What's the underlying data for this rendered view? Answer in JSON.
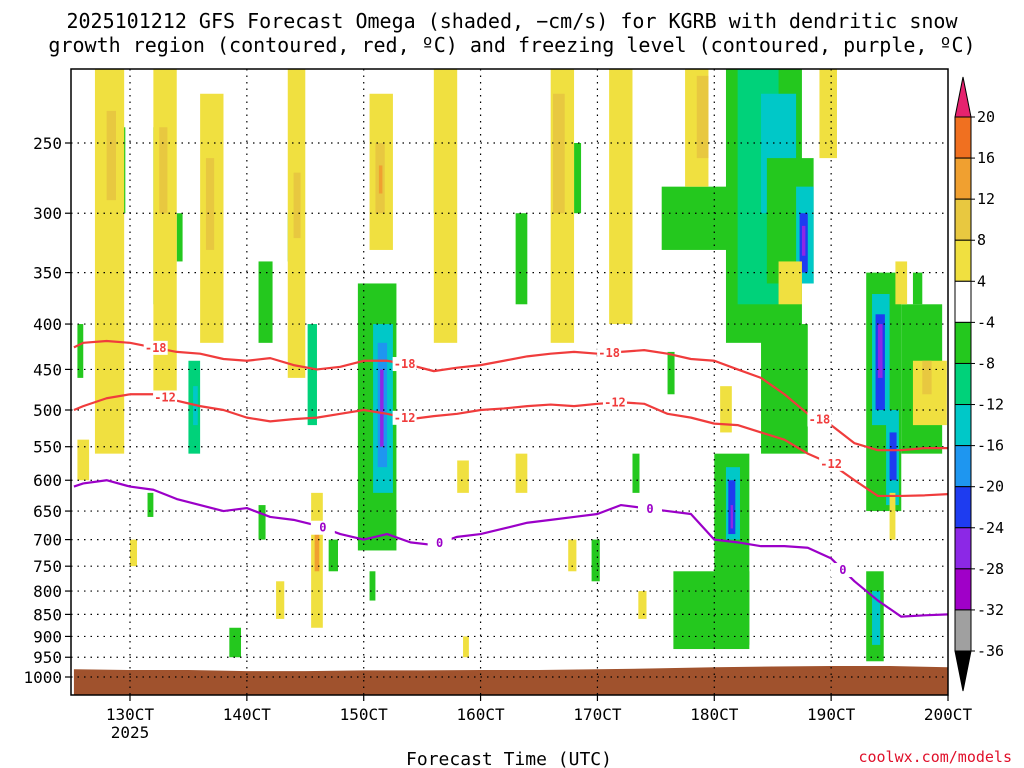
{
  "title": {
    "line1": "2025101212 GFS Forecast Omega (shaded, −cm/s) for KGRB with dendritic snow",
    "line2": "growth region (contoured, red, ºC) and freezing level (contoured, purple, ºC)"
  },
  "credit": "coolwx.com/models",
  "colors": {
    "snow_contour": "#f03c3c",
    "freezing_contour": "#9b00c8",
    "ground": "#a0522d",
    "grid": "#000000"
  },
  "chart_data": {
    "type": "heatmap",
    "title": "2025101212 GFS Forecast Omega (shaded, −cm/s) for KGRB with dendritic snow growth region (contoured, red, ºC) and freezing level (contoured, purple, ºC)",
    "xlabel": "Forecast Time (UTC)",
    "ylabel": "",
    "x_ticks": [
      {
        "v": 13.0,
        "label": "130CT",
        "sub": "2025"
      },
      {
        "v": 14.0,
        "label": "140CT"
      },
      {
        "v": 15.0,
        "label": "150CT"
      },
      {
        "v": 16.0,
        "label": "160CT"
      },
      {
        "v": 17.0,
        "label": "170CT"
      },
      {
        "v": 18.0,
        "label": "180CT"
      },
      {
        "v": 19.0,
        "label": "190CT"
      },
      {
        "v": 20.0,
        "label": "200CT"
      }
    ],
    "xlim": [
      12.52,
      20.0
    ],
    "ylim_hpa": [
      200,
      1025
    ],
    "y_scale": "log-pressure (inverted)",
    "y_ticks": [
      250,
      300,
      350,
      400,
      450,
      500,
      550,
      600,
      650,
      700,
      750,
      800,
      850,
      900,
      950,
      1000
    ],
    "grid": true,
    "colorbar": {
      "position": "right",
      "levels": [
        20,
        16,
        12,
        8,
        4,
        -4,
        -8,
        -12,
        -16,
        -20,
        -24,
        -28,
        -32,
        -36
      ],
      "colors": [
        "#ff4040",
        "#f07020",
        "#f0a030",
        "#e8c840",
        "#f0e040",
        "#ffffff",
        "#24c81e",
        "#00d27a",
        "#00c8c8",
        "#1e96f0",
        "#1e3cf0",
        "#8c28e6",
        "#a000c8",
        "#a0a0a0",
        "#000000"
      ],
      "top_arrow_color": "#e6226e",
      "bottom_arrow_color": "#000000"
    },
    "omega_cells": [
      {
        "t0": 13.5,
        "t1": 13.6,
        "p0": 440,
        "p1": 560,
        "v": -10
      },
      {
        "t0": 13.54,
        "t1": 13.58,
        "p0": 470,
        "p1": 520,
        "v": -16
      },
      {
        "t0": 14.95,
        "t1": 15.28,
        "p0": 360,
        "p1": 720,
        "v": -8
      },
      {
        "t0": 15.08,
        "t1": 15.25,
        "p0": 400,
        "p1": 620,
        "v": -14
      },
      {
        "t0": 15.12,
        "t1": 15.2,
        "p0": 420,
        "p1": 580,
        "v": -20
      },
      {
        "t0": 15.14,
        "t1": 15.17,
        "p0": 450,
        "p1": 550,
        "v": -26
      },
      {
        "t0": 14.52,
        "t1": 14.6,
        "p0": 400,
        "p1": 520,
        "v": -12
      },
      {
        "t0": 13.85,
        "t1": 13.95,
        "p0": 880,
        "p1": 950,
        "v": -8
      },
      {
        "t0": 15.05,
        "t1": 15.1,
        "p0": 760,
        "p1": 820,
        "v": -8
      },
      {
        "t0": 15.6,
        "t1": 15.7,
        "p0": 250,
        "p1": 300,
        "v": -8
      },
      {
        "t0": 17.55,
        "t1": 18.2,
        "p0": 280,
        "p1": 330,
        "v": -8
      },
      {
        "t0": 17.65,
        "t1": 18.3,
        "p0": 760,
        "p1": 930,
        "v": -8
      },
      {
        "t0": 18.0,
        "t1": 18.3,
        "p0": 560,
        "p1": 920,
        "v": -8
      },
      {
        "t0": 18.1,
        "t1": 18.22,
        "p0": 580,
        "p1": 700,
        "v": -14
      },
      {
        "t0": 18.12,
        "t1": 18.18,
        "p0": 600,
        "p1": 690,
        "v": -22
      },
      {
        "t0": 18.14,
        "t1": 18.16,
        "p0": 640,
        "p1": 680,
        "v": -26
      },
      {
        "t0": 18.1,
        "t1": 18.75,
        "p0": 180,
        "p1": 420,
        "v": -8
      },
      {
        "t0": 18.2,
        "t1": 18.55,
        "p0": 200,
        "p1": 380,
        "v": -12
      },
      {
        "t0": 18.4,
        "t1": 18.7,
        "p0": 220,
        "p1": 300,
        "v": -14
      },
      {
        "t0": 18.45,
        "t1": 18.85,
        "p0": 260,
        "p1": 360,
        "v": -8
      },
      {
        "t0": 18.7,
        "t1": 18.85,
        "p0": 280,
        "p1": 360,
        "v": -14
      },
      {
        "t0": 18.73,
        "t1": 18.8,
        "p0": 300,
        "p1": 350,
        "v": -22
      },
      {
        "t0": 18.75,
        "t1": 18.78,
        "p0": 310,
        "p1": 335,
        "v": -26
      },
      {
        "t0": 18.4,
        "t1": 18.8,
        "p0": 400,
        "p1": 560,
        "v": -8
      },
      {
        "t0": 19.3,
        "t1": 19.6,
        "p0": 350,
        "p1": 650,
        "v": -8
      },
      {
        "t0": 19.35,
        "t1": 19.5,
        "p0": 370,
        "p1": 520,
        "v": -14
      },
      {
        "t0": 19.38,
        "t1": 19.46,
        "p0": 390,
        "p1": 500,
        "v": -22
      },
      {
        "t0": 19.4,
        "t1": 19.44,
        "p0": 400,
        "p1": 460,
        "v": -28
      },
      {
        "t0": 19.47,
        "t1": 19.58,
        "p0": 500,
        "p1": 640,
        "v": -14
      },
      {
        "t0": 19.5,
        "t1": 19.56,
        "p0": 530,
        "p1": 600,
        "v": -22
      },
      {
        "t0": 19.3,
        "t1": 19.45,
        "p0": 760,
        "p1": 960,
        "v": -8
      },
      {
        "t0": 19.35,
        "t1": 19.42,
        "p0": 800,
        "p1": 920,
        "v": -14
      },
      {
        "t0": 19.6,
        "t1": 19.95,
        "p0": 380,
        "p1": 560,
        "v": -8
      },
      {
        "t0": 19.7,
        "t1": 19.78,
        "p0": 350,
        "p1": 380,
        "v": -8
      },
      {
        "t0": 12.55,
        "t1": 12.6,
        "p0": 400,
        "p1": 460,
        "v": -8
      },
      {
        "t0": 12.9,
        "t1": 12.96,
        "p0": 240,
        "p1": 300,
        "v": -8
      },
      {
        "t0": 13.2,
        "t1": 13.28,
        "p0": 240,
        "p1": 380,
        "v": -8
      },
      {
        "t0": 13.4,
        "t1": 13.45,
        "p0": 300,
        "p1": 340,
        "v": -8
      },
      {
        "t0": 14.1,
        "t1": 14.22,
        "p0": 340,
        "p1": 420,
        "v": -8
      },
      {
        "t0": 14.35,
        "t1": 14.4,
        "p0": 300,
        "p1": 340,
        "v": -8
      },
      {
        "t0": 16.3,
        "t1": 16.4,
        "p0": 300,
        "p1": 380,
        "v": -8
      },
      {
        "t0": 16.8,
        "t1": 16.86,
        "p0": 250,
        "p1": 300,
        "v": -8
      },
      {
        "t0": 17.3,
        "t1": 17.36,
        "p0": 560,
        "p1": 620,
        "v": -8
      },
      {
        "t0": 17.6,
        "t1": 17.66,
        "p0": 430,
        "p1": 480,
        "v": -8
      },
      {
        "t0": 16.95,
        "t1": 17.02,
        "p0": 700,
        "p1": 780,
        "v": -8
      },
      {
        "t0": 14.7,
        "t1": 14.78,
        "p0": 700,
        "p1": 760,
        "v": -8
      },
      {
        "t0": 14.1,
        "t1": 14.16,
        "p0": 640,
        "p1": 700,
        "v": -8
      },
      {
        "t0": 13.15,
        "t1": 13.2,
        "p0": 620,
        "p1": 660,
        "v": -8
      },
      {
        "t0": 12.7,
        "t1": 12.95,
        "p0": 200,
        "p1": 560,
        "v": 6
      },
      {
        "t0": 12.8,
        "t1": 12.88,
        "p0": 230,
        "p1": 290,
        "v": 10
      },
      {
        "t0": 13.2,
        "t1": 13.4,
        "p0": 200,
        "p1": 480,
        "v": 6
      },
      {
        "t0": 13.25,
        "t1": 13.32,
        "p0": 240,
        "p1": 300,
        "v": 10
      },
      {
        "t0": 13.6,
        "t1": 13.8,
        "p0": 220,
        "p1": 420,
        "v": 6
      },
      {
        "t0": 13.65,
        "t1": 13.72,
        "p0": 260,
        "p1": 330,
        "v": 10
      },
      {
        "t0": 14.35,
        "t1": 14.5,
        "p0": 200,
        "p1": 460,
        "v": 6
      },
      {
        "t0": 14.4,
        "t1": 14.46,
        "p0": 270,
        "p1": 320,
        "v": 10
      },
      {
        "t0": 14.55,
        "t1": 14.65,
        "p0": 620,
        "p1": 880,
        "v": 6
      },
      {
        "t0": 14.58,
        "t1": 14.62,
        "p0": 690,
        "p1": 760,
        "v": 12
      },
      {
        "t0": 15.05,
        "t1": 15.25,
        "p0": 220,
        "p1": 330,
        "v": 6
      },
      {
        "t0": 15.1,
        "t1": 15.18,
        "p0": 250,
        "p1": 300,
        "v": 10
      },
      {
        "t0": 15.13,
        "t1": 15.16,
        "p0": 265,
        "p1": 285,
        "v": 14
      },
      {
        "t0": 15.6,
        "t1": 15.8,
        "p0": 200,
        "p1": 420,
        "v": 6
      },
      {
        "t0": 16.6,
        "t1": 16.8,
        "p0": 200,
        "p1": 420,
        "v": 6
      },
      {
        "t0": 16.62,
        "t1": 16.72,
        "p0": 220,
        "p1": 300,
        "v": 10
      },
      {
        "t0": 17.1,
        "t1": 17.3,
        "p0": 200,
        "p1": 400,
        "v": 6
      },
      {
        "t0": 17.75,
        "t1": 17.95,
        "p0": 200,
        "p1": 280,
        "v": 6
      },
      {
        "t0": 17.85,
        "t1": 17.95,
        "p0": 210,
        "p1": 260,
        "v": 10
      },
      {
        "t0": 18.05,
        "t1": 18.15,
        "p0": 470,
        "p1": 530,
        "v": 6
      },
      {
        "t0": 18.55,
        "t1": 18.75,
        "p0": 340,
        "p1": 380,
        "v": 6
      },
      {
        "t0": 18.9,
        "t1": 19.05,
        "p0": 200,
        "p1": 260,
        "v": 6
      },
      {
        "t0": 19.5,
        "t1": 19.55,
        "p0": 620,
        "p1": 700,
        "v": 6
      },
      {
        "t0": 19.55,
        "t1": 19.65,
        "p0": 340,
        "p1": 380,
        "v": 6
      },
      {
        "t0": 19.7,
        "t1": 19.99,
        "p0": 440,
        "p1": 520,
        "v": 6
      },
      {
        "t0": 19.78,
        "t1": 19.86,
        "p0": 440,
        "p1": 480,
        "v": 10
      },
      {
        "t0": 12.55,
        "t1": 12.65,
        "p0": 540,
        "p1": 600,
        "v": 6
      },
      {
        "t0": 15.8,
        "t1": 15.9,
        "p0": 570,
        "p1": 620,
        "v": 6
      },
      {
        "t0": 16.3,
        "t1": 16.4,
        "p0": 560,
        "p1": 620,
        "v": 6
      },
      {
        "t0": 13.0,
        "t1": 13.06,
        "p0": 700,
        "p1": 750,
        "v": 6
      },
      {
        "t0": 14.25,
        "t1": 14.32,
        "p0": 780,
        "p1": 860,
        "v": 6
      },
      {
        "t0": 15.85,
        "t1": 15.9,
        "p0": 900,
        "p1": 950,
        "v": 6
      },
      {
        "t0": 16.75,
        "t1": 16.82,
        "p0": 700,
        "p1": 760,
        "v": 6
      },
      {
        "t0": 17.35,
        "t1": 17.42,
        "p0": 800,
        "p1": 860,
        "v": 6
      }
    ],
    "series": [
      {
        "name": "-18",
        "type": "contour",
        "color_key": "snow_contour",
        "x": [
          12.52,
          12.6,
          12.8,
          13.0,
          13.2,
          13.4,
          13.6,
          13.8,
          14.0,
          14.2,
          14.4,
          14.6,
          14.8,
          15.0,
          15.2,
          15.4,
          15.6,
          15.8,
          16.0,
          16.2,
          16.4,
          16.6,
          16.8,
          17.0,
          17.2,
          17.4,
          17.6,
          17.8,
          18.0,
          18.2,
          18.4,
          18.6,
          18.8,
          19.0,
          19.2,
          19.4,
          19.6,
          19.8,
          20.0
        ],
        "y": [
          425,
          420,
          418,
          420,
          425,
          430,
          432,
          438,
          440,
          437,
          445,
          450,
          447,
          440,
          440,
          445,
          452,
          448,
          445,
          440,
          435,
          432,
          430,
          432,
          430,
          428,
          432,
          438,
          440,
          450,
          460,
          480,
          505,
          520,
          545,
          555,
          555,
          552,
          552
        ],
        "labels": [
          {
            "x": 13.22,
            "text": "-18"
          },
          {
            "x": 15.35,
            "text": "-18"
          },
          {
            "x": 17.1,
            "text": "-18"
          },
          {
            "x": 18.9,
            "text": "-18"
          }
        ]
      },
      {
        "name": "-12",
        "type": "contour",
        "color_key": "snow_contour",
        "x": [
          12.52,
          12.6,
          12.8,
          13.0,
          13.2,
          13.4,
          13.6,
          13.8,
          14.0,
          14.2,
          14.4,
          14.6,
          14.8,
          15.0,
          15.2,
          15.4,
          15.6,
          15.8,
          16.0,
          16.2,
          16.4,
          16.6,
          16.8,
          17.0,
          17.2,
          17.4,
          17.6,
          17.8,
          18.0,
          18.2,
          18.4,
          18.6,
          18.8,
          19.0,
          19.2,
          19.4,
          19.6,
          19.8,
          20.0
        ],
        "y": [
          500,
          495,
          485,
          480,
          480,
          488,
          495,
          500,
          510,
          515,
          512,
          510,
          505,
          500,
          505,
          512,
          508,
          505,
          500,
          498,
          495,
          493,
          495,
          492,
          490,
          492,
          505,
          510,
          518,
          520,
          530,
          540,
          560,
          575,
          600,
          625,
          625,
          624,
          622
        ],
        "labels": [
          {
            "x": 13.3,
            "text": "-12"
          },
          {
            "x": 15.35,
            "text": "-12"
          },
          {
            "x": 17.15,
            "text": "-12"
          },
          {
            "x": 19.0,
            "text": "-12"
          }
        ]
      },
      {
        "name": "0",
        "type": "contour",
        "color_key": "freezing_contour",
        "x": [
          12.52,
          12.6,
          12.8,
          13.0,
          13.2,
          13.4,
          13.6,
          13.8,
          14.0,
          14.2,
          14.4,
          14.6,
          14.8,
          15.0,
          15.2,
          15.4,
          15.6,
          15.8,
          16.0,
          16.2,
          16.4,
          16.6,
          16.8,
          17.0,
          17.2,
          17.4,
          17.6,
          17.8,
          18.0,
          18.2,
          18.4,
          18.6,
          18.8,
          19.0,
          19.2,
          19.4,
          19.6,
          19.8,
          20.0
        ],
        "y": [
          610,
          605,
          600,
          610,
          615,
          630,
          640,
          650,
          645,
          660,
          665,
          675,
          690,
          700,
          690,
          705,
          710,
          695,
          690,
          680,
          670,
          665,
          660,
          655,
          640,
          645,
          650,
          655,
          700,
          705,
          712,
          712,
          715,
          735,
          780,
          820,
          855,
          852,
          850
        ],
        "labels": [
          {
            "x": 14.65,
            "text": "0"
          },
          {
            "x": 15.65,
            "text": "0"
          },
          {
            "x": 17.45,
            "text": "0"
          },
          {
            "x": 19.1,
            "text": "0"
          }
        ]
      }
    ],
    "ground": {
      "x": [
        12.52,
        13.0,
        13.5,
        14.0,
        14.5,
        15.0,
        15.5,
        16.0,
        16.5,
        17.0,
        17.5,
        18.0,
        18.5,
        19.0,
        19.5,
        20.0
      ],
      "hpa": [
        980,
        982,
        982,
        985,
        985,
        983,
        983,
        982,
        982,
        980,
        978,
        975,
        973,
        972,
        972,
        975
      ]
    }
  }
}
